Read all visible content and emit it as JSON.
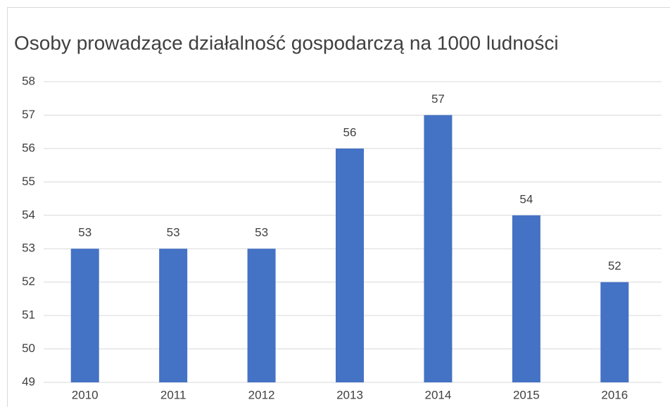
{
  "chart_data": {
    "type": "bar",
    "title": "Osoby prowadzące działalność gospodarczą na 1000 ludności",
    "categories": [
      "2010",
      "2011",
      "2012",
      "2013",
      "2014",
      "2015",
      "2016"
    ],
    "values": [
      53,
      53,
      53,
      56,
      57,
      54,
      52
    ],
    "color": "#4472c4",
    "ylim": [
      49,
      58
    ],
    "yticks": [
      49,
      50,
      51,
      52,
      53,
      54,
      55,
      56,
      57,
      58
    ],
    "grid": true
  }
}
